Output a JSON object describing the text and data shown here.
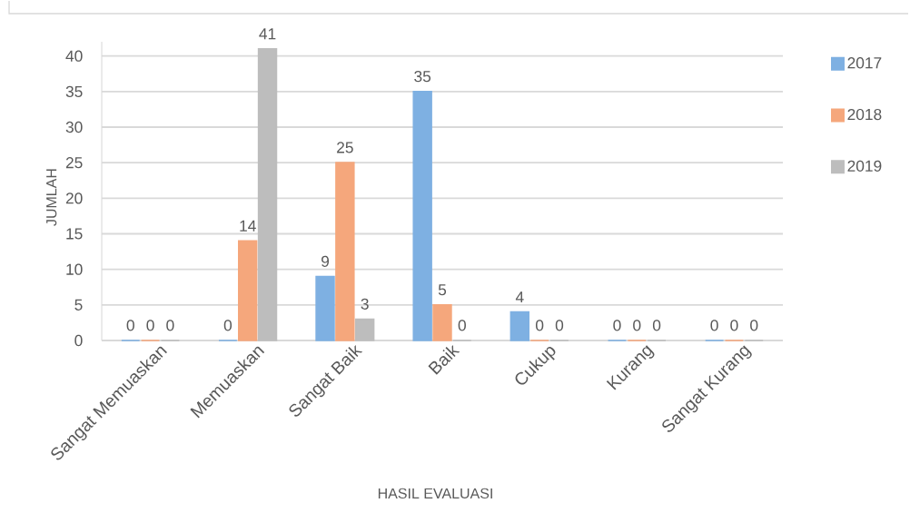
{
  "chart_data": {
    "type": "bar",
    "xlabel": "HASIL EVALUASI",
    "ylabel": "JUMLAH",
    "categories": [
      "Sangat Memuaskan",
      "Memuaskan",
      "Sangat Baik",
      "Baik",
      "Cukup",
      "Kurang",
      "Sangat Kurang"
    ],
    "series": [
      {
        "name": "2017",
        "color": "#7eb0e2",
        "values": [
          0,
          0,
          9,
          35,
          4,
          0,
          0
        ]
      },
      {
        "name": "2018",
        "color": "#f5a77c",
        "values": [
          0,
          14,
          25,
          5,
          0,
          0,
          0
        ]
      },
      {
        "name": "2019",
        "color": "#bdbdbd",
        "values": [
          0,
          41,
          3,
          0,
          0,
          0,
          0
        ]
      }
    ],
    "ylim": [
      0,
      42
    ],
    "yticks": [
      0,
      5,
      10,
      15,
      20,
      25,
      30,
      35,
      40
    ],
    "grid": "y",
    "legend": "right",
    "data_labels": true
  }
}
